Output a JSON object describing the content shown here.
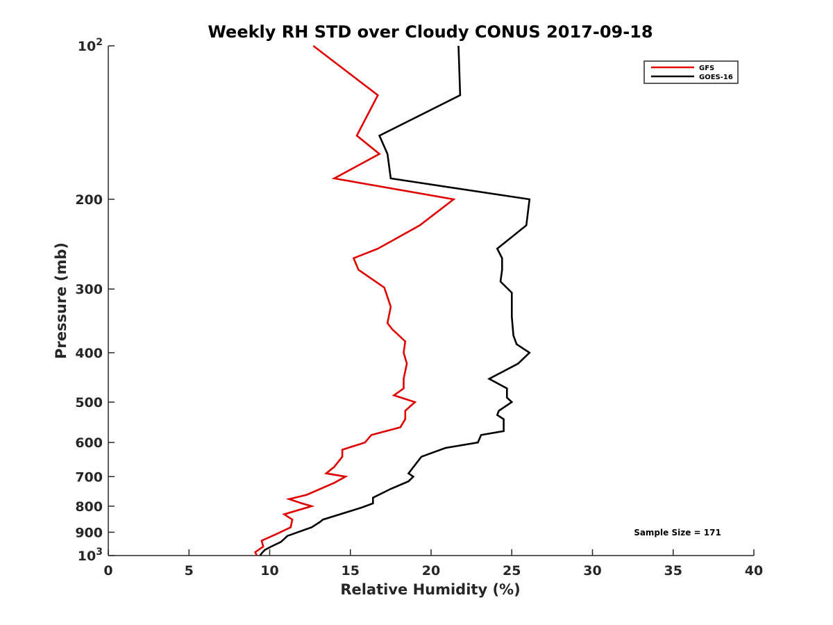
{
  "chart_data": {
    "type": "line",
    "title": "Weekly RH STD over Cloudy CONUS 2017-09-18",
    "xlabel": "Relative Humidity (%)",
    "ylabel": "Pressure (mb)",
    "xlim": [
      0,
      40
    ],
    "ylim": [
      100,
      1000
    ],
    "y_scale": "log",
    "y_reversed": true,
    "grid": false,
    "legend_position": "top-right",
    "x_ticks": [
      0,
      5,
      10,
      15,
      20,
      25,
      30,
      35,
      40
    ],
    "x_tick_labels": [
      "0",
      "5",
      "10",
      "15",
      "20",
      "25",
      "30",
      "35",
      "40"
    ],
    "y_ticks": [
      100,
      200,
      300,
      400,
      500,
      600,
      700,
      800,
      900,
      1000
    ],
    "y_tick_labels": [
      {
        "base": "10",
        "exp": "2"
      },
      {
        "text": "200"
      },
      {
        "text": "300"
      },
      {
        "text": "400"
      },
      {
        "text": "500"
      },
      {
        "text": "600"
      },
      {
        "text": "700"
      },
      {
        "text": "800"
      },
      {
        "text": "900"
      },
      {
        "base": "10",
        "exp": "3"
      }
    ],
    "annotation": "Sample Size = 171",
    "series": [
      {
        "name": "GFS",
        "color": "#e00000",
        "points": [
          [
            12.7,
            100
          ],
          [
            16.7,
            125
          ],
          [
            15.4,
            150
          ],
          [
            16.8,
            163
          ],
          [
            14.0,
            182
          ],
          [
            21.4,
            200
          ],
          [
            19.3,
            225
          ],
          [
            16.7,
            250
          ],
          [
            15.2,
            261
          ],
          [
            15.5,
            275
          ],
          [
            17.1,
            298
          ],
          [
            17.5,
            325
          ],
          [
            17.3,
            350
          ],
          [
            17.6,
            360
          ],
          [
            18.4,
            380
          ],
          [
            18.3,
            400
          ],
          [
            18.5,
            420
          ],
          [
            18.3,
            450
          ],
          [
            18.3,
            470
          ],
          [
            17.7,
            485
          ],
          [
            19.0,
            500
          ],
          [
            18.4,
            520
          ],
          [
            18.4,
            540
          ],
          [
            18.1,
            560
          ],
          [
            16.3,
            580
          ],
          [
            15.9,
            600
          ],
          [
            14.5,
            620
          ],
          [
            14.5,
            640
          ],
          [
            14.0,
            670
          ],
          [
            13.5,
            690
          ],
          [
            14.7,
            700
          ],
          [
            14.0,
            720
          ],
          [
            12.3,
            760
          ],
          [
            11.2,
            775
          ],
          [
            12.0,
            790
          ],
          [
            12.6,
            800
          ],
          [
            10.9,
            830
          ],
          [
            11.4,
            850
          ],
          [
            11.3,
            880
          ],
          [
            10.5,
            905
          ],
          [
            9.5,
            935
          ],
          [
            9.6,
            960
          ],
          [
            9.1,
            985
          ],
          [
            9.2,
            1000
          ]
        ]
      },
      {
        "name": "GOES-16",
        "color": "#000000",
        "points": [
          [
            21.7,
            100
          ],
          [
            21.8,
            125
          ],
          [
            16.8,
            150
          ],
          [
            17.3,
            163
          ],
          [
            17.5,
            182
          ],
          [
            26.1,
            200
          ],
          [
            25.9,
            225
          ],
          [
            24.1,
            250
          ],
          [
            24.4,
            261
          ],
          [
            24.4,
            275
          ],
          [
            24.3,
            290
          ],
          [
            25.0,
            305
          ],
          [
            25.0,
            340
          ],
          [
            25.1,
            370
          ],
          [
            25.3,
            385
          ],
          [
            26.1,
            400
          ],
          [
            25.4,
            420
          ],
          [
            23.6,
            450
          ],
          [
            24.7,
            470
          ],
          [
            24.7,
            490
          ],
          [
            25.0,
            500
          ],
          [
            24.2,
            520
          ],
          [
            24.1,
            530
          ],
          [
            24.5,
            540
          ],
          [
            24.5,
            570
          ],
          [
            23.1,
            580
          ],
          [
            22.9,
            600
          ],
          [
            20.9,
            615
          ],
          [
            19.4,
            640
          ],
          [
            18.6,
            690
          ],
          [
            18.9,
            700
          ],
          [
            18.6,
            715
          ],
          [
            17.5,
            740
          ],
          [
            16.4,
            770
          ],
          [
            16.4,
            790
          ],
          [
            15.7,
            805
          ],
          [
            13.3,
            850
          ],
          [
            13.1,
            860
          ],
          [
            12.6,
            880
          ],
          [
            11.1,
            915
          ],
          [
            10.7,
            940
          ],
          [
            10.1,
            960
          ],
          [
            9.7,
            975
          ],
          [
            9.5,
            990
          ],
          [
            9.4,
            1000
          ]
        ]
      }
    ]
  }
}
